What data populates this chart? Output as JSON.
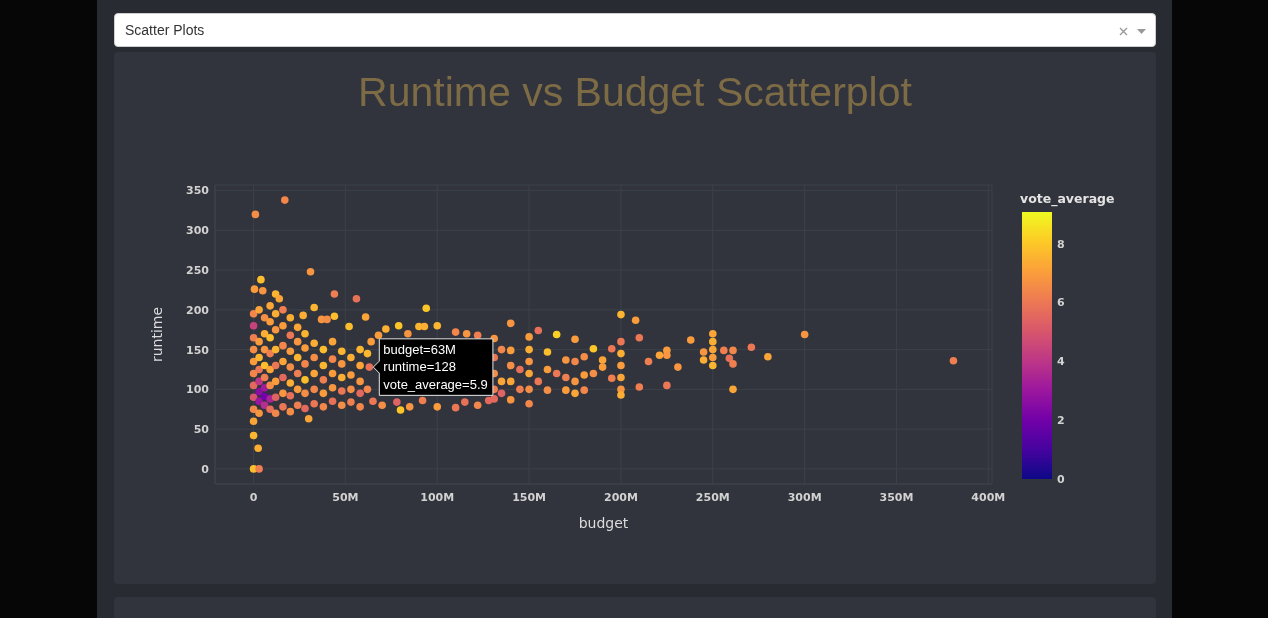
{
  "chart_data": {
    "type": "scatter",
    "title": "Runtime vs Budget Scatterplot",
    "xlabel": "budget",
    "ylabel": "runtime",
    "clabel": "vote_average",
    "annotations": [
      "Scatter Plots",
      {
        "text": "budget=63M runtime=128 vote_average=5.9",
        "x": 63,
        "y": 128
      }
    ],
    "x": [
      1,
      17,
      31,
      4,
      0.5,
      5,
      12,
      14,
      44,
      56,
      94,
      27,
      33,
      37,
      40,
      44,
      61,
      52,
      72,
      79,
      90,
      93,
      100,
      0,
      3,
      0,
      2.5,
      30,
      0,
      0,
      0,
      0,
      0,
      0,
      0,
      0,
      0,
      0,
      3,
      3,
      3,
      3,
      3,
      3,
      3,
      3,
      6,
      6,
      6,
      6,
      6,
      6,
      6,
      6,
      9,
      9,
      9,
      9,
      9,
      9,
      9,
      9,
      12,
      12,
      12,
      12,
      12,
      12,
      12,
      16,
      16,
      16,
      16,
      16,
      16,
      16,
      20,
      20,
      20,
      20,
      20,
      20,
      20,
      24,
      24,
      24,
      24,
      24,
      24,
      28,
      28,
      28,
      28,
      28,
      28,
      33,
      33,
      33,
      33,
      33,
      38,
      38,
      38,
      38,
      38,
      43,
      43,
      43,
      43,
      43,
      48,
      48,
      48,
      48,
      48,
      53,
      53,
      53,
      53,
      58,
      58,
      58,
      58,
      58,
      63,
      62,
      62,
      64,
      65,
      70,
      78,
      80,
      85,
      92,
      100,
      110,
      115,
      122,
      128,
      68,
      84,
      110,
      116,
      122,
      131,
      131,
      131,
      131,
      131,
      135,
      135,
      135,
      140,
      140,
      140,
      140,
      140,
      145,
      145,
      150,
      150,
      150,
      150,
      150,
      150,
      155,
      155,
      160,
      160,
      160,
      165,
      165,
      170,
      170,
      170,
      175,
      175,
      175,
      175,
      180,
      180,
      180,
      185,
      185,
      190,
      190,
      195,
      195,
      200,
      200,
      200,
      200,
      200,
      200,
      200,
      208,
      210,
      210,
      215,
      221,
      225,
      225,
      225,
      231,
      238,
      245,
      245,
      250,
      250,
      250,
      250,
      250,
      256,
      259,
      261,
      261,
      261,
      271,
      280,
      300,
      381
    ],
    "values": [
      320,
      338,
      248,
      238,
      226,
      224,
      220,
      214,
      220,
      214,
      202,
      193,
      203,
      188,
      188,
      192,
      191,
      179,
      176,
      180,
      179,
      179,
      180,
      0,
      0,
      42,
      26,
      63,
      60,
      75,
      90,
      105,
      120,
      135,
      150,
      165,
      180,
      195,
      70,
      85,
      97,
      110,
      125,
      140,
      160,
      200,
      80,
      91,
      102,
      115,
      130,
      150,
      170,
      190,
      75,
      88,
      105,
      125,
      145,
      165,
      185,
      205,
      70,
      90,
      110,
      130,
      150,
      175,
      195,
      78,
      95,
      115,
      135,
      155,
      180,
      200,
      72,
      92,
      108,
      128,
      148,
      168,
      190,
      80,
      100,
      120,
      140,
      160,
      178,
      76,
      95,
      112,
      132,
      152,
      170,
      82,
      100,
      120,
      140,
      158,
      78,
      95,
      112,
      130,
      150,
      85,
      102,
      120,
      138,
      160,
      80,
      98,
      115,
      132,
      148,
      84,
      100,
      118,
      140,
      78,
      95,
      110,
      130,
      150,
      128,
      100,
      145,
      160,
      85,
      80,
      84,
      74,
      78,
      86,
      78,
      77,
      84,
      80,
      86,
      168,
      170,
      172,
      170,
      168,
      164,
      140,
      120,
      100,
      88,
      150,
      110,
      95,
      183,
      149,
      130,
      110,
      87,
      125,
      100,
      166,
      150,
      135,
      120,
      100,
      82,
      174,
      110,
      147,
      125,
      99,
      169,
      120,
      137,
      115,
      99,
      163,
      135,
      110,
      95,
      141,
      118,
      99,
      151,
      120,
      137,
      128,
      151,
      114,
      194,
      160,
      145,
      130,
      115,
      100,
      93,
      187,
      165,
      103,
      135,
      143,
      149,
      143,
      105,
      128,
      162,
      147,
      137,
      170,
      160,
      150,
      140,
      130,
      149,
      139,
      149,
      132,
      100,
      153,
      141,
      169,
      136
    ],
    "cvalues": [
      6.6,
      6.4,
      6.8,
      7.8,
      7.0,
      6.8,
      7.6,
      7.2,
      6.2,
      5.8,
      8.0,
      7.4,
      7.6,
      6.8,
      6.6,
      7.8,
      7.2,
      7.8,
      7.5,
      8.0,
      7.6,
      7.4,
      7.6,
      7.8,
      6.2,
      7.6,
      7.4,
      7.2,
      7.2,
      6.5,
      5.0,
      5.6,
      6.4,
      7.0,
      6.6,
      6.2,
      4.4,
      6.4,
      6.8,
      3.0,
      2.6,
      4.0,
      6.0,
      7.6,
      7.0,
      7.2,
      3.8,
      2.0,
      3.2,
      6.2,
      7.8,
      6.8,
      7.4,
      6.6,
      5.8,
      3.4,
      6.6,
      7.2,
      6.2,
      7.8,
      7.0,
      7.2,
      6.4,
      5.4,
      7.0,
      6.0,
      7.6,
      6.8,
      7.4,
      6.0,
      6.8,
      5.6,
      7.2,
      6.4,
      7.0,
      6.2,
      6.6,
      5.8,
      7.4,
      6.6,
      7.0,
      6.0,
      7.4,
      6.2,
      7.0,
      6.2,
      7.6,
      6.8,
      7.2,
      5.6,
      6.6,
      7.8,
      6.4,
      7.0,
      7.6,
      6.0,
      6.4,
      7.2,
      6.6,
      7.4,
      6.4,
      7.0,
      6.2,
      7.6,
      7.8,
      5.8,
      6.8,
      7.0,
      6.4,
      7.2,
      6.6,
      6.0,
      7.4,
      6.8,
      7.6,
      6.2,
      6.6,
      7.0,
      7.4,
      6.4,
      5.6,
      6.8,
      7.2,
      7.6,
      5.9,
      6.4,
      7.6,
      7.0,
      6.0,
      6.6,
      5.4,
      8.0,
      6.8,
      6.2,
      7.0,
      6.0,
      5.8,
      6.4,
      5.6,
      7.0,
      6.8,
      6.4,
      6.8,
      6.2,
      6.8,
      6.0,
      6.6,
      6.2,
      5.6,
      6.4,
      7.2,
      5.4,
      6.8,
      7.0,
      6.6,
      7.2,
      6.8,
      5.8,
      6.2,
      7.0,
      7.4,
      6.8,
      7.2,
      6.6,
      6.4,
      5.8,
      6.0,
      7.8,
      7.0,
      6.6,
      8.2,
      6.0,
      6.8,
      6.2,
      7.0,
      7.0,
      6.4,
      6.8,
      7.2,
      6.6,
      7.0,
      6.4,
      8.0,
      6.6,
      7.2,
      7.0,
      6.0,
      6.2,
      7.6,
      6.0,
      7.4,
      7.0,
      7.2,
      6.8,
      7.4,
      7.0,
      6.0,
      6.2,
      6.2,
      7.2,
      7.0,
      6.8,
      6.0,
      6.8,
      7.0,
      6.8,
      7.4,
      7.2,
      7.4,
      7.2,
      7.0,
      7.6,
      6.2,
      5.8,
      6.4,
      6.2,
      7.2,
      6.0,
      7.2,
      6.8,
      6.2
    ],
    "xlim": [
      -21,
      402
    ],
    "xticks": [
      0,
      {
        "value": 50,
        "label": "50M"
      },
      {
        "value": 100,
        "label": "100M"
      },
      {
        "value": 150,
        "label": "150M"
      },
      {
        "value": 200,
        "label": "200M"
      },
      {
        "value": 250,
        "label": "250M"
      },
      {
        "value": 300,
        "label": "300M"
      },
      {
        "value": 350,
        "label": "350M"
      },
      {
        "value": 400,
        "label": "400M"
      }
    ],
    "ylim": [
      -19,
      357
    ],
    "yticks": [
      0,
      50,
      100,
      150,
      200,
      250,
      300,
      350
    ],
    "clim": [
      0,
      9.1
    ],
    "cticks": [
      0,
      2,
      4,
      6,
      8
    ],
    "grid": true,
    "marker": "circle"
  }
}
